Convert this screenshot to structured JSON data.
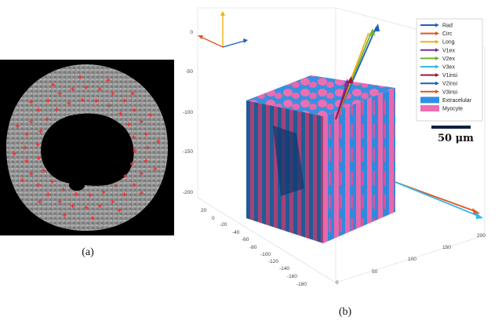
{
  "panel_a": {
    "caption": "(a)"
  },
  "panel_b": {
    "caption": "(b)",
    "z_ticks": [
      "0",
      "-50",
      "-100",
      "-150",
      "-200"
    ],
    "y_ticks": [
      "20",
      "0",
      "-20",
      "-40",
      "-60",
      "-80",
      "-100",
      "-120",
      "-140",
      "-160",
      "-180"
    ],
    "x_ticks": [
      "0",
      "50",
      "100",
      "150",
      "200"
    ],
    "legend": [
      {
        "label": "Rad",
        "color": "#1f5fbf",
        "kind": "arrow"
      },
      {
        "label": "Circ",
        "color": "#e2561c",
        "kind": "arrow"
      },
      {
        "label": "Long",
        "color": "#f0b01a",
        "kind": "arrow"
      },
      {
        "label": "V1ex",
        "color": "#7a2f9e",
        "kind": "arrow"
      },
      {
        "label": "V2ex",
        "color": "#6fb32c",
        "kind": "arrow"
      },
      {
        "label": "V3ex",
        "color": "#38b7e8",
        "kind": "arrow"
      },
      {
        "label": "V1insi",
        "color": "#a3143a",
        "kind": "arrow"
      },
      {
        "label": "V2insi",
        "color": "#1f5fbf",
        "kind": "arrow"
      },
      {
        "label": "V3insi",
        "color": "#e2561c",
        "kind": "arrow"
      },
      {
        "label": "Extracelular",
        "color": "#2f8fe6",
        "kind": "patch"
      },
      {
        "label": "Myocyte",
        "color": "#ec6fb3",
        "kind": "patch"
      }
    ],
    "scalebar_label": "50 μm"
  }
}
